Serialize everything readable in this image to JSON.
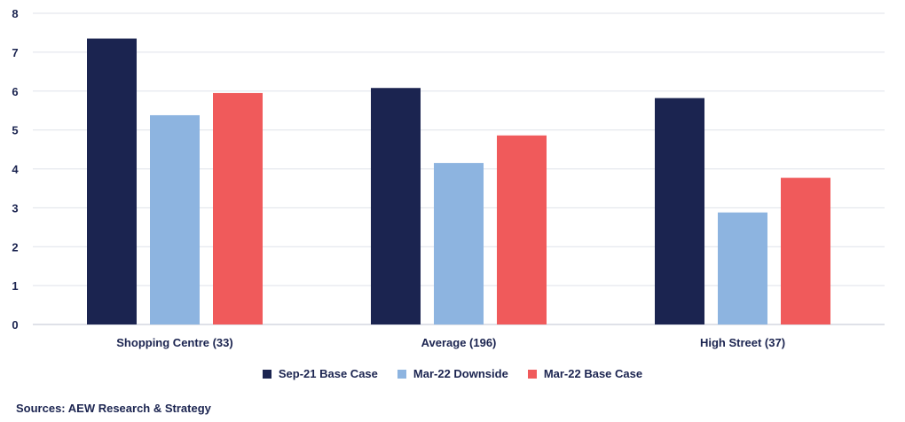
{
  "chart_data": {
    "type": "bar",
    "categories": [
      "Shopping Centre (33)",
      "Average (196)",
      "High Street (37)"
    ],
    "series": [
      {
        "name": "Sep-21 Base Case",
        "color": "#1b2450",
        "values": [
          7.35,
          6.08,
          5.82
        ]
      },
      {
        "name": "Mar-22 Downside",
        "color": "#8db4e0",
        "values": [
          5.38,
          4.15,
          2.88
        ]
      },
      {
        "name": "Mar-22 Base Case",
        "color": "#f05a5b",
        "values": [
          5.95,
          4.86,
          3.77
        ]
      }
    ],
    "ylim": [
      0,
      8
    ],
    "yticks": [
      0,
      1,
      2,
      3,
      4,
      5,
      6,
      7,
      8
    ],
    "grid": true,
    "legend_position": "bottom"
  },
  "source": "Sources: AEW Research & Strategy"
}
